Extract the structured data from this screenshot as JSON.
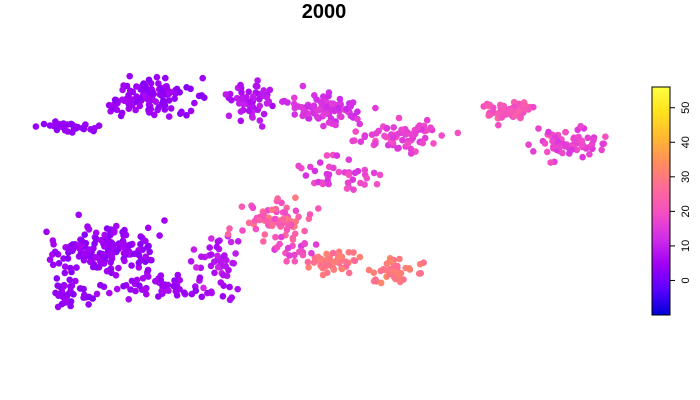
{
  "chart_data": {
    "type": "scatter",
    "title": "2000",
    "xlabel": "",
    "ylabel": "",
    "grid": false,
    "axes_visible": false,
    "x_range": [
      0,
      100
    ],
    "y_range": [
      0,
      100
    ],
    "color_scale": {
      "min": -10,
      "max": 56,
      "ticks": [
        0,
        10,
        20,
        30,
        40,
        50
      ],
      "tick_labels": [
        "0",
        "10",
        "20",
        "30",
        "40",
        "50"
      ],
      "colors": [
        "#0000d8",
        "#5a00ff",
        "#a000f4",
        "#d02ce8",
        "#f44ec4",
        "#ff6a98",
        "#ff8c5e",
        "#ffb832",
        "#ffe21c",
        "#ffff40"
      ],
      "legend_placement": "right"
    },
    "clusters": [
      {
        "cx": 20,
        "cy": 87,
        "sx": 7,
        "sy": 6,
        "n": 120,
        "v0": 2,
        "v1": 6,
        "seed": 11
      },
      {
        "cx": 6,
        "cy": 76,
        "sx": 4,
        "sy": 2,
        "n": 30,
        "v0": 2,
        "v1": 5,
        "seed": 12
      },
      {
        "cx": 37,
        "cy": 85,
        "sx": 4,
        "sy": 6,
        "n": 55,
        "v0": 6,
        "v1": 10,
        "seed": 13
      },
      {
        "cx": 50,
        "cy": 83,
        "sx": 6,
        "sy": 5,
        "n": 90,
        "v0": 11,
        "v1": 16,
        "seed": 14
      },
      {
        "cx": 63,
        "cy": 73,
        "sx": 7,
        "sy": 5,
        "n": 70,
        "v0": 14,
        "v1": 20,
        "seed": 15
      },
      {
        "cx": 82,
        "cy": 82,
        "sx": 4,
        "sy": 3,
        "n": 55,
        "v0": 18,
        "v1": 25,
        "seed": 16
      },
      {
        "cx": 92,
        "cy": 70,
        "sx": 6,
        "sy": 4,
        "n": 70,
        "v0": 14,
        "v1": 20,
        "seed": 17
      },
      {
        "cx": 12,
        "cy": 33,
        "sx": 8,
        "sy": 7,
        "n": 160,
        "v0": 2,
        "v1": 6,
        "seed": 18
      },
      {
        "cx": 6,
        "cy": 17,
        "sx": 3,
        "sy": 5,
        "n": 35,
        "v0": 2,
        "v1": 5,
        "seed": 19
      },
      {
        "cx": 22,
        "cy": 20,
        "sx": 10,
        "sy": 5,
        "n": 70,
        "v0": 3,
        "v1": 7,
        "seed": 20
      },
      {
        "cx": 32,
        "cy": 30,
        "sx": 3,
        "sy": 7,
        "n": 40,
        "v0": 6,
        "v1": 12,
        "seed": 21
      },
      {
        "cx": 41,
        "cy": 43,
        "sx": 5,
        "sy": 6,
        "n": 75,
        "v0": 18,
        "v1": 30,
        "seed": 22
      },
      {
        "cx": 52,
        "cy": 28,
        "sx": 4,
        "sy": 3,
        "n": 50,
        "v0": 26,
        "v1": 32,
        "seed": 23
      },
      {
        "cx": 62,
        "cy": 25,
        "sx": 4,
        "sy": 4,
        "n": 45,
        "v0": 26,
        "v1": 33,
        "seed": 24
      },
      {
        "cx": 52,
        "cy": 60,
        "sx": 6,
        "sy": 6,
        "n": 40,
        "v0": 13,
        "v1": 20,
        "seed": 25
      },
      {
        "cx": 45,
        "cy": 33,
        "sx": 3,
        "sy": 4,
        "n": 20,
        "v0": 14,
        "v1": 22,
        "seed": 26
      }
    ]
  }
}
